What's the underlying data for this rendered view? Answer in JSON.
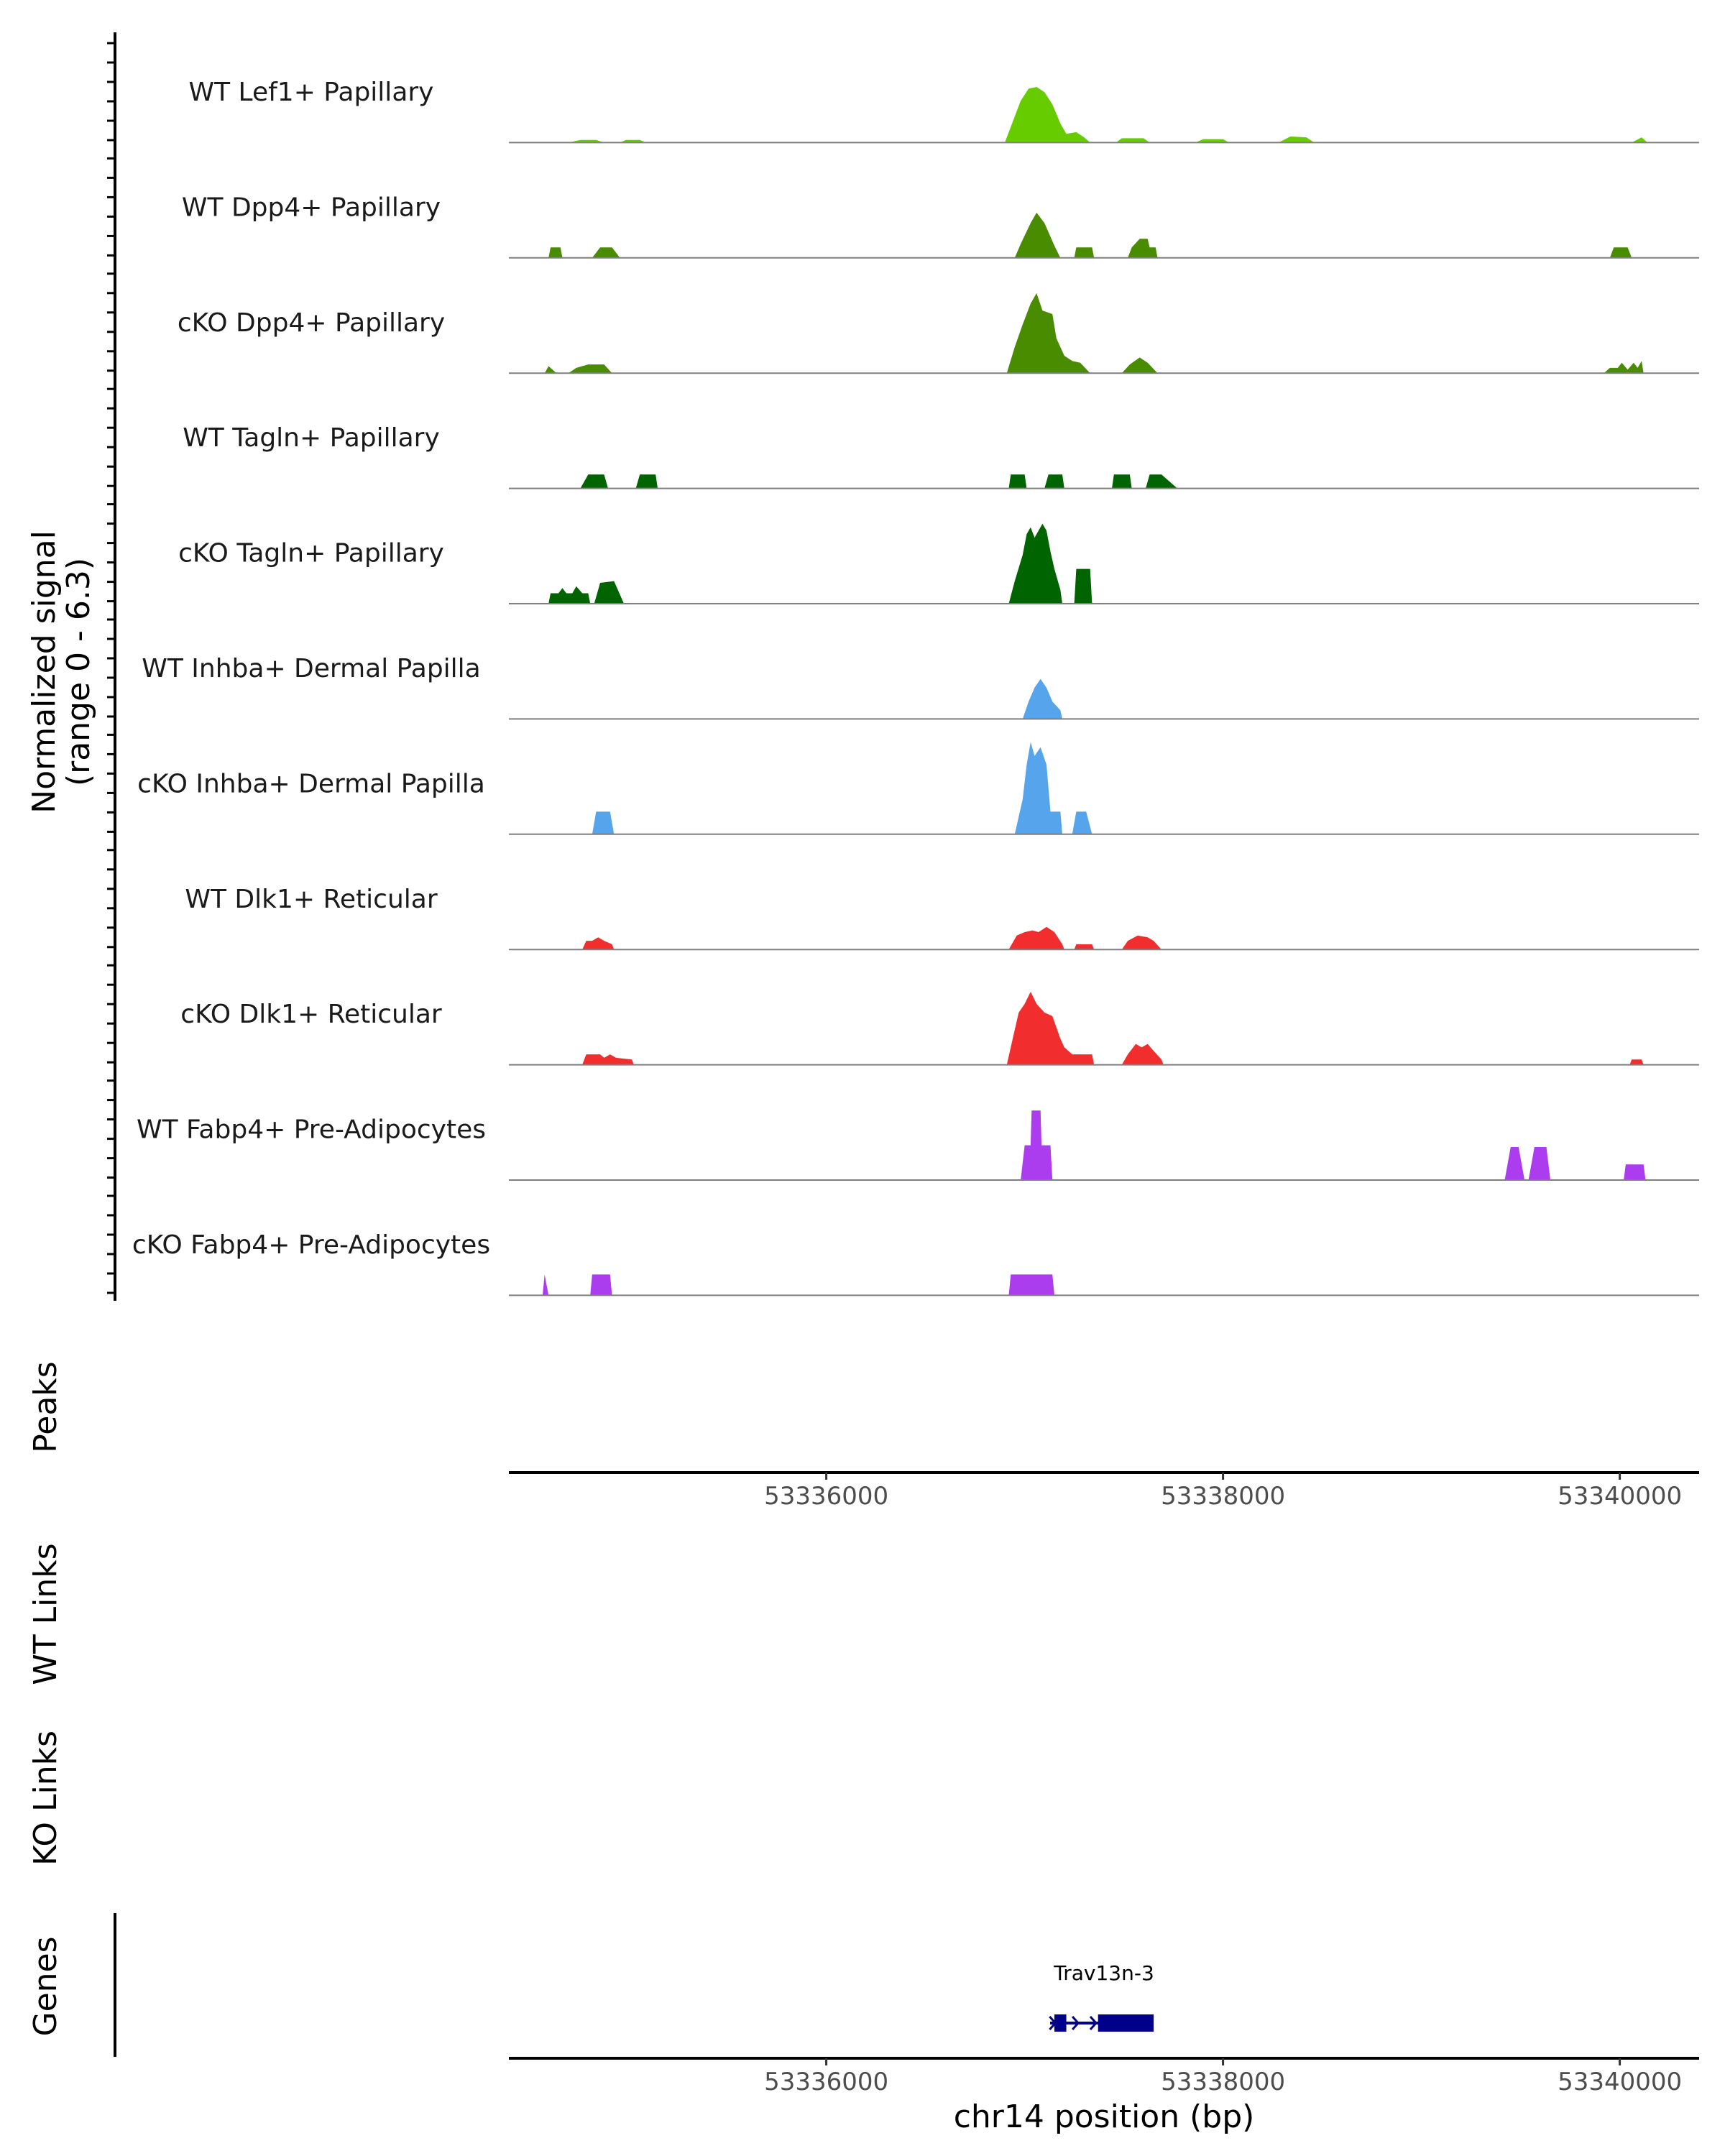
{
  "chart_data": {
    "type": "area",
    "title": "",
    "region": "chr14",
    "xlabel": "chr14 position (bp)",
    "xlim": [
      53334400,
      53340400
    ],
    "xticks": [
      53336000,
      53338000,
      53340000
    ],
    "xtick_labels": [
      "53336000",
      "53338000",
      "53340000"
    ],
    "signal_ylabel_line1": "Normalized signal",
    "signal_ylabel_line2": "(range 0 - 6.3)",
    "ylim": [
      0,
      6.3
    ],
    "panel_labels": {
      "peaks": "Peaks",
      "wt_links": "WT Links",
      "ko_links": "KO Links",
      "genes": "Genes"
    },
    "gene": {
      "name": "Trav13n-3",
      "start": 53337150,
      "end": 53337650,
      "thick_start": 53337370,
      "thick_end": 53337650,
      "exon1": [
        53337150,
        53337210
      ],
      "strand": "+",
      "color": "#00008b"
    },
    "series": [
      {
        "name": "WT Lef1+ Papillary",
        "color": "#66cc00",
        "points": [
          [
            53334700,
            0
          ],
          [
            53334760,
            0.15
          ],
          [
            53334840,
            0.15
          ],
          [
            53334880,
            0
          ],
          [
            53334960,
            0
          ],
          [
            53334990,
            0.15
          ],
          [
            53335060,
            0.15
          ],
          [
            53335090,
            0
          ],
          [
            53336900,
            0
          ],
          [
            53336940,
            1.2
          ],
          [
            53336980,
            2.4
          ],
          [
            53337020,
            3.1
          ],
          [
            53337060,
            3.2
          ],
          [
            53337100,
            2.9
          ],
          [
            53337140,
            2.2
          ],
          [
            53337180,
            1.1
          ],
          [
            53337210,
            0.5
          ],
          [
            53337260,
            0.6
          ],
          [
            53337300,
            0.3
          ],
          [
            53337330,
            0
          ],
          [
            53337460,
            0
          ],
          [
            53337490,
            0.25
          ],
          [
            53337600,
            0.25
          ],
          [
            53337630,
            0
          ],
          [
            53337860,
            0
          ],
          [
            53337900,
            0.2
          ],
          [
            53338000,
            0.2
          ],
          [
            53338030,
            0
          ],
          [
            53338280,
            0
          ],
          [
            53338340,
            0.35
          ],
          [
            53338420,
            0.3
          ],
          [
            53338460,
            0
          ],
          [
            53340060,
            0
          ],
          [
            53340110,
            0.3
          ],
          [
            53340140,
            0
          ]
        ]
      },
      {
        "name": "WT Dpp4+ Papillary",
        "color": "#4a8c00",
        "points": [
          [
            53334600,
            0
          ],
          [
            53334610,
            0.6
          ],
          [
            53334660,
            0.6
          ],
          [
            53334670,
            0
          ],
          [
            53334820,
            0
          ],
          [
            53334860,
            0.6
          ],
          [
            53334920,
            0.6
          ],
          [
            53334960,
            0
          ],
          [
            53336950,
            0
          ],
          [
            53336980,
            0.8
          ],
          [
            53337030,
            2.0
          ],
          [
            53337060,
            2.6
          ],
          [
            53337100,
            2.0
          ],
          [
            53337150,
            0.7
          ],
          [
            53337180,
            0
          ],
          [
            53337250,
            0
          ],
          [
            53337260,
            0.6
          ],
          [
            53337340,
            0.6
          ],
          [
            53337350,
            0
          ],
          [
            53337520,
            0
          ],
          [
            53337540,
            0.6
          ],
          [
            53337580,
            1.1
          ],
          [
            53337620,
            1.1
          ],
          [
            53337630,
            0.6
          ],
          [
            53337660,
            0.6
          ],
          [
            53337670,
            0
          ],
          [
            53339950,
            0
          ],
          [
            53339970,
            0.6
          ],
          [
            53340040,
            0.6
          ],
          [
            53340060,
            0
          ]
        ]
      },
      {
        "name": "cKO Dpp4+ Papillary",
        "color": "#4a8c00",
        "points": [
          [
            53334580,
            0
          ],
          [
            53334600,
            0.4
          ],
          [
            53334640,
            0
          ],
          [
            53334700,
            0
          ],
          [
            53334740,
            0.3
          ],
          [
            53334800,
            0.5
          ],
          [
            53334880,
            0.5
          ],
          [
            53334920,
            0
          ],
          [
            53336910,
            0
          ],
          [
            53336950,
            1.5
          ],
          [
            53336990,
            2.8
          ],
          [
            53337030,
            4.0
          ],
          [
            53337060,
            4.6
          ],
          [
            53337090,
            3.6
          ],
          [
            53337140,
            3.4
          ],
          [
            53337160,
            2.0
          ],
          [
            53337200,
            1.0
          ],
          [
            53337240,
            0.7
          ],
          [
            53337280,
            0.6
          ],
          [
            53337330,
            0
          ],
          [
            53337490,
            0
          ],
          [
            53337530,
            0.5
          ],
          [
            53337580,
            0.9
          ],
          [
            53337620,
            0.6
          ],
          [
            53337670,
            0
          ],
          [
            53339920,
            0
          ],
          [
            53339950,
            0.3
          ],
          [
            53339990,
            0.3
          ],
          [
            53340010,
            0.6
          ],
          [
            53340040,
            0.2
          ],
          [
            53340070,
            0.6
          ],
          [
            53340090,
            0.3
          ],
          [
            53340110,
            0.7
          ],
          [
            53340120,
            0
          ]
        ]
      },
      {
        "name": "WT Tagln+ Papillary",
        "color": "#006400",
        "points": [
          [
            53334760,
            0
          ],
          [
            53334800,
            0.8
          ],
          [
            53334880,
            0.8
          ],
          [
            53334900,
            0
          ],
          [
            53335040,
            0
          ],
          [
            53335060,
            0.8
          ],
          [
            53335140,
            0.8
          ],
          [
            53335150,
            0
          ],
          [
            53336920,
            0
          ],
          [
            53336930,
            0.8
          ],
          [
            53337000,
            0.8
          ],
          [
            53337010,
            0
          ],
          [
            53337100,
            0
          ],
          [
            53337120,
            0.8
          ],
          [
            53337190,
            0.8
          ],
          [
            53337200,
            0
          ],
          [
            53337440,
            0
          ],
          [
            53337450,
            0.8
          ],
          [
            53337530,
            0.8
          ],
          [
            53337540,
            0
          ],
          [
            53337610,
            0
          ],
          [
            53337630,
            0.8
          ],
          [
            53337690,
            0.8
          ],
          [
            53337770,
            0
          ]
        ]
      },
      {
        "name": "cKO Tagln+ Papillary",
        "color": "#006400",
        "points": [
          [
            53334600,
            0
          ],
          [
            53334610,
            0.6
          ],
          [
            53334650,
            0.6
          ],
          [
            53334670,
            0.9
          ],
          [
            53334690,
            0.6
          ],
          [
            53334720,
            0.6
          ],
          [
            53334740,
            1.0
          ],
          [
            53334770,
            0.6
          ],
          [
            53334800,
            0.6
          ],
          [
            53334810,
            0
          ],
          [
            53334830,
            0
          ],
          [
            53334860,
            1.2
          ],
          [
            53334930,
            1.3
          ],
          [
            53334980,
            0
          ],
          [
            53336920,
            0
          ],
          [
            53336950,
            1.3
          ],
          [
            53336990,
            2.8
          ],
          [
            53337010,
            4.0
          ],
          [
            53337030,
            4.4
          ],
          [
            53337050,
            3.8
          ],
          [
            53337070,
            4.2
          ],
          [
            53337090,
            4.6
          ],
          [
            53337110,
            4.2
          ],
          [
            53337130,
            3.0
          ],
          [
            53337150,
            2.0
          ],
          [
            53337180,
            0.8
          ],
          [
            53337190,
            0
          ],
          [
            53337250,
            0
          ],
          [
            53337260,
            2.0
          ],
          [
            53337330,
            2.0
          ],
          [
            53337340,
            0
          ]
        ]
      },
      {
        "name": "WT Inhba+ Dermal Papilla",
        "color": "#56a5ec",
        "points": [
          [
            53336990,
            0
          ],
          [
            53337020,
            1.0
          ],
          [
            53337050,
            1.8
          ],
          [
            53337080,
            2.3
          ],
          [
            53337110,
            1.8
          ],
          [
            53337140,
            1.0
          ],
          [
            53337180,
            0.5
          ],
          [
            53337190,
            0
          ]
        ]
      },
      {
        "name": "cKO Inhba+ Dermal Papilla",
        "color": "#56a5ec",
        "points": [
          [
            53334820,
            0
          ],
          [
            53334840,
            1.3
          ],
          [
            53334910,
            1.3
          ],
          [
            53334930,
            0
          ],
          [
            53336950,
            0
          ],
          [
            53336990,
            2.0
          ],
          [
            53337010,
            4.0
          ],
          [
            53337030,
            5.3
          ],
          [
            53337050,
            4.5
          ],
          [
            53337080,
            5.0
          ],
          [
            53337110,
            4.0
          ],
          [
            53337130,
            1.3
          ],
          [
            53337180,
            1.3
          ],
          [
            53337190,
            0
          ],
          [
            53337240,
            0
          ],
          [
            53337260,
            1.3
          ],
          [
            53337310,
            1.3
          ],
          [
            53337340,
            0
          ]
        ]
      },
      {
        "name": "WT Dlk1+ Reticular",
        "color": "#f22d2d",
        "points": [
          [
            53334770,
            0
          ],
          [
            53334790,
            0.5
          ],
          [
            53334820,
            0.5
          ],
          [
            53334850,
            0.7
          ],
          [
            53334880,
            0.5
          ],
          [
            53334920,
            0.3
          ],
          [
            53334930,
            0
          ],
          [
            53336920,
            0
          ],
          [
            53336960,
            0.8
          ],
          [
            53337000,
            1.0
          ],
          [
            53337040,
            1.1
          ],
          [
            53337070,
            1.0
          ],
          [
            53337110,
            1.3
          ],
          [
            53337150,
            1.0
          ],
          [
            53337190,
            0.3
          ],
          [
            53337200,
            0
          ],
          [
            53337250,
            0
          ],
          [
            53337260,
            0.3
          ],
          [
            53337340,
            0.3
          ],
          [
            53337350,
            0
          ],
          [
            53337490,
            0
          ],
          [
            53337520,
            0.5
          ],
          [
            53337570,
            0.8
          ],
          [
            53337620,
            0.7
          ],
          [
            53337650,
            0.5
          ],
          [
            53337690,
            0
          ]
        ]
      },
      {
        "name": "cKO Dlk1+ Reticular",
        "color": "#f22d2d",
        "points": [
          [
            53334770,
            0
          ],
          [
            53334790,
            0.6
          ],
          [
            53334860,
            0.6
          ],
          [
            53334880,
            0.4
          ],
          [
            53334910,
            0.6
          ],
          [
            53334940,
            0.4
          ],
          [
            53335020,
            0.3
          ],
          [
            53335030,
            0
          ],
          [
            53336910,
            0
          ],
          [
            53336940,
            1.5
          ],
          [
            53336970,
            3.0
          ],
          [
            53337000,
            3.5
          ],
          [
            53337030,
            4.2
          ],
          [
            53337060,
            3.5
          ],
          [
            53337100,
            3.0
          ],
          [
            53337140,
            2.8
          ],
          [
            53337180,
            1.5
          ],
          [
            53337200,
            1.0
          ],
          [
            53337240,
            0.6
          ],
          [
            53337340,
            0.6
          ],
          [
            53337350,
            0
          ],
          [
            53337490,
            0
          ],
          [
            53337520,
            0.6
          ],
          [
            53337560,
            1.2
          ],
          [
            53337590,
            1.0
          ],
          [
            53337620,
            1.2
          ],
          [
            53337650,
            0.8
          ],
          [
            53337690,
            0.3
          ],
          [
            53337700,
            0
          ],
          [
            53340050,
            0
          ],
          [
            53340060,
            0.3
          ],
          [
            53340110,
            0.3
          ],
          [
            53340120,
            0
          ]
        ]
      },
      {
        "name": "WT Fabp4+ Pre-Adipocytes",
        "color": "#ac3dee",
        "points": [
          [
            53336980,
            0
          ],
          [
            53337000,
            2.0
          ],
          [
            53337030,
            2.0
          ],
          [
            53337035,
            4.0
          ],
          [
            53337080,
            4.0
          ],
          [
            53337085,
            2.0
          ],
          [
            53337130,
            2.0
          ],
          [
            53337140,
            0
          ],
          [
            53339420,
            0
          ],
          [
            53339450,
            1.9
          ],
          [
            53339490,
            1.9
          ],
          [
            53339520,
            0
          ],
          [
            53339540,
            0
          ],
          [
            53339570,
            1.9
          ],
          [
            53339630,
            1.9
          ],
          [
            53339650,
            0
          ],
          [
            53340020,
            0
          ],
          [
            53340030,
            0.9
          ],
          [
            53340120,
            0.9
          ],
          [
            53340130,
            0
          ]
        ]
      },
      {
        "name": "cKO Fabp4+ Pre-Adipocytes",
        "color": "#ac3dee",
        "points": [
          [
            53334570,
            0
          ],
          [
            53334580,
            1.2
          ],
          [
            53334600,
            0
          ],
          [
            53334810,
            0
          ],
          [
            53334820,
            1.2
          ],
          [
            53334910,
            1.2
          ],
          [
            53334920,
            0
          ],
          [
            53336920,
            0
          ],
          [
            53336930,
            1.2
          ],
          [
            53337140,
            1.2
          ],
          [
            53337150,
            0
          ]
        ]
      }
    ]
  }
}
